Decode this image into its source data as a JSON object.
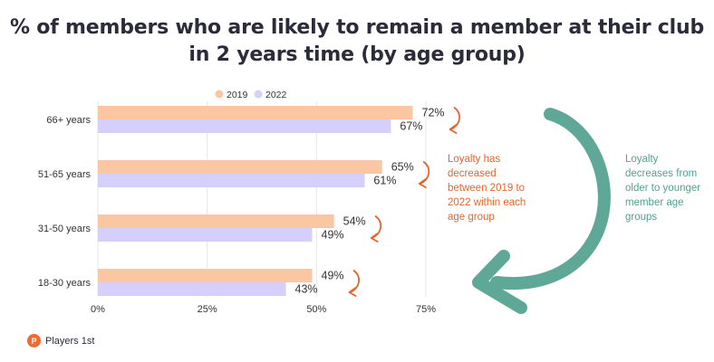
{
  "title": "% of members who are likely to remain a member at their club in 2 years time (by age group)",
  "notes": {
    "orange": "Loyalty has decreased between 2019 to 2022 within each age group",
    "green": "Loyalty decreases from older to younger member age groups"
  },
  "brand": {
    "name": "Players 1st",
    "logo_text": "P"
  },
  "colors": {
    "series_2019": "#fbc7a3",
    "series_2022": "#d5d0fb",
    "orange_accent": "#e8632a",
    "green_accent": "#5fa897",
    "grid": "#e6e6e6",
    "text": "#333333"
  },
  "chart_data": {
    "type": "bar",
    "orientation": "horizontal",
    "categories": [
      "66+ years",
      "51-65 years",
      "31-50 years",
      "18-30 years"
    ],
    "series": [
      {
        "name": "2019",
        "values": [
          72,
          65,
          54,
          49
        ]
      },
      {
        "name": "2022",
        "values": [
          67,
          61,
          49,
          43
        ]
      }
    ],
    "value_labels": [
      [
        "72%",
        "67%"
      ],
      [
        "65%",
        "61%"
      ],
      [
        "54%",
        "49%"
      ],
      [
        "49%",
        "43%"
      ]
    ],
    "xticks": [
      "0%",
      "25%",
      "50%",
      "75%"
    ],
    "xtick_values": [
      0,
      25,
      50,
      75
    ],
    "xlim": [
      0,
      75
    ],
    "grid": true,
    "legend_position": "top-center"
  }
}
